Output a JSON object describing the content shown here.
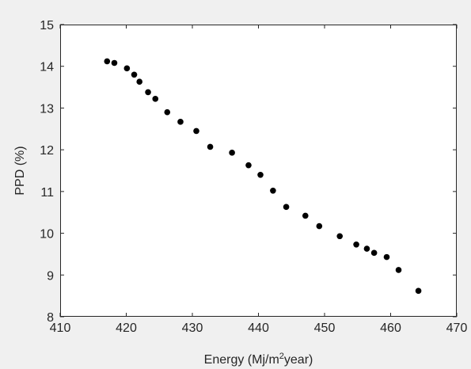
{
  "chart_data": {
    "type": "scatter",
    "title": "",
    "xlabel": "Energy (Mj/m",
    "xlabel_sup": "2",
    "xlabel_tail": "year)",
    "ylabel": "PPD (%)",
    "xlim": [
      410,
      470
    ],
    "ylim": [
      8,
      15
    ],
    "xticks": [
      410,
      420,
      430,
      440,
      450,
      460,
      470
    ],
    "yticks": [
      8,
      9,
      10,
      11,
      12,
      13,
      14,
      15
    ],
    "grid": false,
    "marker_color": "#000000",
    "series": [
      {
        "points": [
          [
            417.1,
            14.12
          ],
          [
            418.2,
            14.08
          ],
          [
            420.1,
            13.95
          ],
          [
            421.2,
            13.8
          ],
          [
            422.0,
            13.63
          ],
          [
            423.3,
            13.38
          ],
          [
            424.4,
            13.22
          ],
          [
            426.2,
            12.9
          ],
          [
            428.2,
            12.67
          ],
          [
            430.6,
            12.45
          ],
          [
            432.7,
            12.07
          ],
          [
            436.0,
            11.93
          ],
          [
            438.5,
            11.63
          ],
          [
            440.3,
            11.4
          ],
          [
            442.2,
            11.02
          ],
          [
            444.2,
            10.63
          ],
          [
            447.1,
            10.42
          ],
          [
            449.2,
            10.17
          ],
          [
            452.3,
            9.93
          ],
          [
            454.8,
            9.73
          ],
          [
            456.4,
            9.63
          ],
          [
            457.5,
            9.53
          ],
          [
            459.4,
            9.43
          ],
          [
            461.2,
            9.12
          ],
          [
            464.2,
            8.62
          ]
        ]
      }
    ]
  }
}
